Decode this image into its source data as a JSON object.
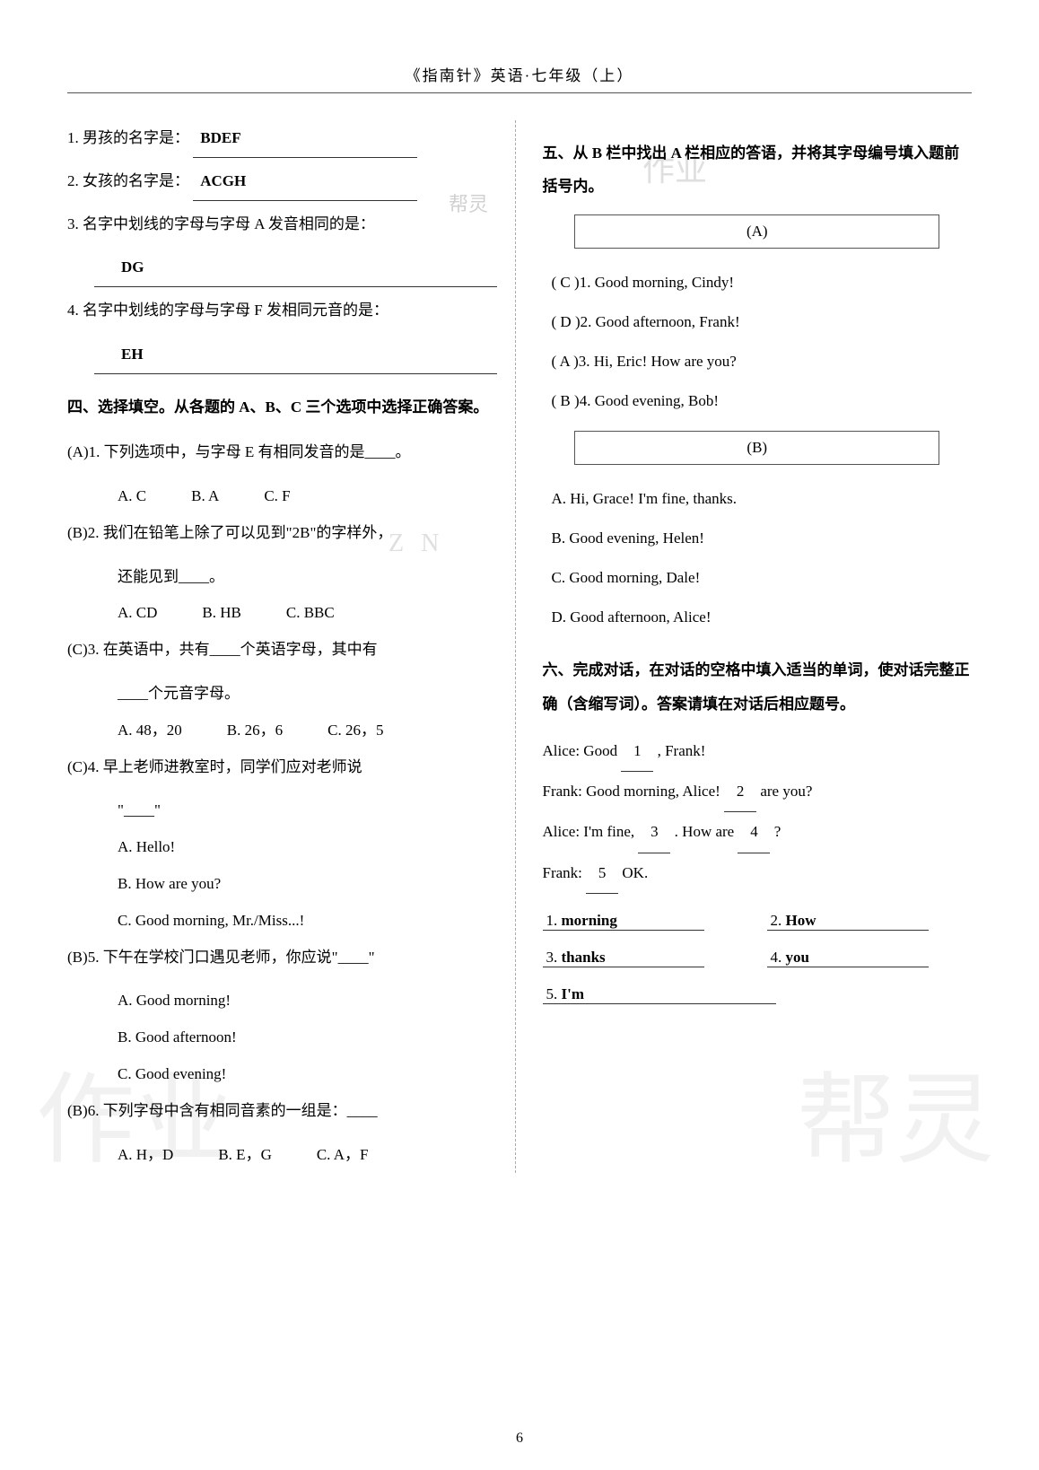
{
  "header": "《指南针》英语·七年级（上）",
  "page_number": "6",
  "watermark_left": "作业",
  "watermark_right": "帮灵",
  "watermark_small": "作业",
  "watermark_logo": "帮灵",
  "zn_mark": "Z N",
  "left": {
    "q1": {
      "label": "1. 男孩的名字是：",
      "answer": "BDEF"
    },
    "q2": {
      "label": "2. 女孩的名字是：",
      "answer": "ACGH"
    },
    "q3": {
      "label": "3. 名字中划线的字母与字母 A 发音相同的是：",
      "answer": "DG"
    },
    "q4": {
      "label": "4. 名字中划线的字母与字母 F 发相同元音的是：",
      "answer": "EH"
    },
    "section4_title": "四、选择填空。从各题的 A、B、C 三个选项中选择正确答案。",
    "mc": [
      {
        "ans": "A",
        "num": "1",
        "text": "下列选项中，与字母 E 有相同发音的是____。",
        "opts": [
          "A. C",
          "B. A",
          "C. F"
        ]
      },
      {
        "ans": "B",
        "num": "2",
        "text": "我们在铅笔上除了可以见到\"2B\"的字样外，",
        "text2": "还能见到____。",
        "opts": [
          "A. CD",
          "B. HB",
          "C. BBC"
        ]
      },
      {
        "ans": "C",
        "num": "3",
        "text": "在英语中，共有____个英语字母，其中有",
        "text2": "____个元音字母。",
        "opts": [
          "A. 48，20",
          "B. 26，6",
          "C. 26，5"
        ]
      },
      {
        "ans": "C",
        "num": "4",
        "text": "早上老师进教室时，同学们应对老师说",
        "text2": "\"____\"",
        "vopts": [
          "A. Hello!",
          "B. How are you?",
          "C. Good morning, Mr./Miss...!"
        ]
      },
      {
        "ans": "B",
        "num": "5",
        "text": "下午在学校门口遇见老师，你应说\"____\"",
        "vopts": [
          "A. Good morning!",
          "B. Good afternoon!",
          "C. Good evening!"
        ]
      },
      {
        "ans": "B",
        "num": "6",
        "text": "下列字母中含有相同音素的一组是：____",
        "opts": [
          "A. H，D",
          "B. E，G",
          "C. A，F"
        ]
      }
    ]
  },
  "right": {
    "section5_title": "五、从 B 栏中找出 A 栏相应的答语，并将其字母编号填入题前括号内。",
    "box_a": "(A)",
    "a_items": [
      {
        "ans": "C",
        "num": "1",
        "text": "Good morning, Cindy!"
      },
      {
        "ans": "D",
        "num": "2",
        "text": "Good afternoon, Frank!"
      },
      {
        "ans": "A",
        "num": "3",
        "text": "Hi, Eric! How are you?"
      },
      {
        "ans": "B",
        "num": "4",
        "text": "Good evening, Bob!"
      }
    ],
    "box_b": "(B)",
    "b_items": [
      "A. Hi, Grace! I'm fine, thanks.",
      "B. Good evening, Helen!",
      "C. Good morning, Dale!",
      "D. Good afternoon, Alice!"
    ],
    "section6_title": "六、完成对话，在对话的空格中填入适当的单词，使对话完整正确（含缩写词）。答案请填在对话后相应题号。",
    "dialogue": [
      "Alice: Good __1__ , Frank!",
      "Frank: Good morning, Alice! __2__ are you?",
      "Alice: I'm fine, __3__ . How are __4__ ?",
      "Frank: __5__ OK."
    ],
    "answers": [
      {
        "num": "1",
        "val": "morning"
      },
      {
        "num": "2",
        "val": "How"
      },
      {
        "num": "3",
        "val": "thanks"
      },
      {
        "num": "4",
        "val": "you"
      },
      {
        "num": "5",
        "val": "I'm"
      }
    ]
  }
}
